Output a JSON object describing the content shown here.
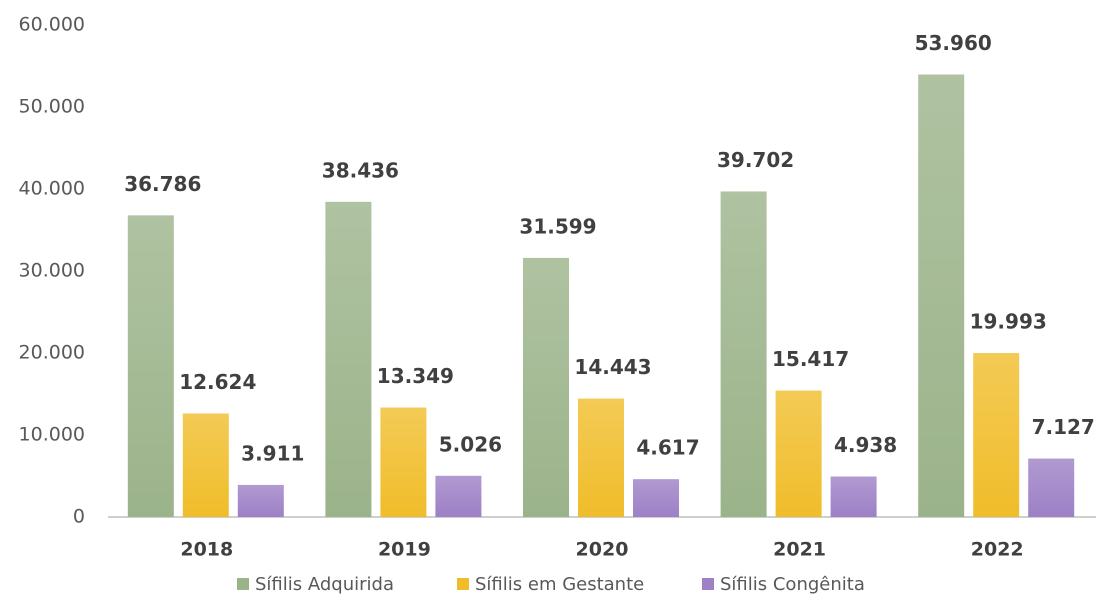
{
  "chart_data": {
    "type": "bar",
    "categories": [
      "2018",
      "2019",
      "2020",
      "2021",
      "2022"
    ],
    "series": [
      {
        "name": "Sífilis Adquirida",
        "color": "#9bb38a",
        "values": [
          36786,
          38436,
          31599,
          39702,
          53960
        ],
        "value_labels": [
          "36.786",
          "38.436",
          "31.599",
          "39.702",
          "53.960"
        ]
      },
      {
        "name": "Sífilis em Gestante",
        "color": "#f0bd2a",
        "values": [
          12624,
          13349,
          14443,
          15417,
          19993
        ],
        "value_labels": [
          "12.624",
          "13.349",
          "14.443",
          "15.417",
          "19.993"
        ]
      },
      {
        "name": "Sífilis Congênita",
        "color": "#9d80c6",
        "values": [
          3911,
          5026,
          4617,
          4938,
          7127
        ],
        "value_labels": [
          "3.911",
          "5.026",
          "4.617",
          "4.938",
          "7.127"
        ]
      }
    ],
    "ylim": [
      0,
      60000
    ],
    "yticks": [
      0,
      {
        "value": 10000,
        "label": "10.000"
      },
      {
        "value": 20000,
        "label": "20.000"
      },
      {
        "value": 30000,
        "label": "30.000"
      },
      {
        "value": 40000,
        "label": "40.000"
      },
      {
        "value": 50000,
        "label": "50.000"
      },
      {
        "value": 60000,
        "label": "60.000"
      }
    ],
    "grid": false,
    "legend": "bottom"
  }
}
